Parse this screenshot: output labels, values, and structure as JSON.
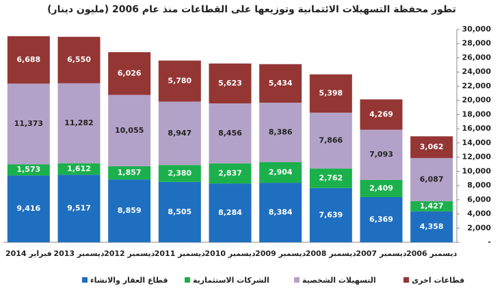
{
  "chart_data": {
    "type": "stacked_bar",
    "title": "تطور محفظة التسهيلات الائتمانية وتوزيعها على القطاعات منذ عام 2006 (مليون دينار)",
    "categories": [
      "فبراير 2014",
      "ديسمبر 2013",
      "ديسمبر 2012",
      "ديسمبر 2011",
      "ديسمبر 2010",
      "ديسمبر 2009",
      "ديسمبر 2008",
      "ديسمبر 2007",
      "ديسمبر 2006"
    ],
    "series": [
      {
        "name": "قطاع العقار والانشاء",
        "color": "#1f6fc0",
        "label_color": "#ffffff",
        "values": [
          9416,
          9517,
          8859,
          8505,
          8284,
          8384,
          7639,
          6369,
          4358
        ],
        "value_labels": [
          "9,416",
          "9,517",
          "8,859",
          "8,505",
          "8,284",
          "8,384",
          "7,639",
          "6,369",
          "4,358"
        ]
      },
      {
        "name": "الشركات الاستثمارية",
        "color": "#1bb04c",
        "label_color": "#ffffff",
        "values": [
          1573,
          1612,
          1857,
          2380,
          2837,
          2904,
          2762,
          2409,
          1427
        ],
        "value_labels": [
          "1,573",
          "1,612",
          "1,857",
          "2,380",
          "2,837",
          "2,904",
          "2,762",
          "2,409",
          "1,427"
        ]
      },
      {
        "name": "التسهيلات الشخصية",
        "color": "#b3a2c7",
        "label_color": "#222222",
        "values": [
          11373,
          11282,
          10055,
          8947,
          8456,
          8386,
          7866,
          7093,
          6087
        ],
        "value_labels": [
          "11,373",
          "11,282",
          "10,055",
          "8,947",
          "8,456",
          "8,386",
          "7,866",
          "7,093",
          "6,087"
        ]
      },
      {
        "name": "قطاعات اخرى",
        "color": "#943634",
        "label_color": "#ffffff",
        "values": [
          6688,
          6550,
          6026,
          5780,
          5623,
          5434,
          5398,
          4269,
          3062
        ],
        "value_labels": [
          "6,688",
          "6,550",
          "6,026",
          "5,780",
          "5,623",
          "5,434",
          "5,398",
          "4,269",
          "3,062"
        ]
      }
    ],
    "ylim": [
      0,
      30000
    ],
    "yticks": [
      {
        "value": 0,
        "label": "-"
      },
      {
        "value": 2000,
        "label": "2,000"
      },
      {
        "value": 4000,
        "label": "4,000"
      },
      {
        "value": 6000,
        "label": "6,000"
      },
      {
        "value": 8000,
        "label": "8,000"
      },
      {
        "value": 10000,
        "label": "10,000"
      },
      {
        "value": 12000,
        "label": "12,000"
      },
      {
        "value": 14000,
        "label": "14,000"
      },
      {
        "value": 16000,
        "label": "16,000"
      },
      {
        "value": 18000,
        "label": "18,000"
      },
      {
        "value": 20000,
        "label": "20,000"
      },
      {
        "value": 22000,
        "label": "22,000"
      },
      {
        "value": 24000,
        "label": "24,000"
      },
      {
        "value": 26000,
        "label": "26,000"
      },
      {
        "value": 28000,
        "label": "28,000"
      },
      {
        "value": 30000,
        "label": "30,000"
      }
    ],
    "y_axis_side": "right",
    "grid": false
  }
}
